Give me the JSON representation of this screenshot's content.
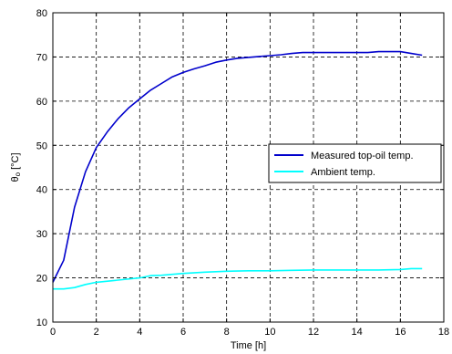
{
  "chart_data": {
    "type": "line",
    "title": "",
    "xlabel": "Time [h]",
    "ylabel": {
      "main": "θ",
      "subscript": "o",
      "unit": " [°C]"
    },
    "xlim": [
      0,
      18
    ],
    "ylim": [
      10,
      80
    ],
    "xticks": [
      0,
      2,
      4,
      6,
      8,
      10,
      12,
      14,
      16,
      18
    ],
    "yticks": [
      10,
      20,
      30,
      40,
      50,
      60,
      70,
      80
    ],
    "grid": true,
    "legend_position": "right",
    "series": [
      {
        "name": "Measured top-oil temp.",
        "color": "#0000cc",
        "x": [
          0,
          0.5,
          1,
          1.5,
          2,
          2.5,
          3,
          3.5,
          4,
          4.5,
          5,
          5.5,
          6,
          6.5,
          7,
          7.5,
          8,
          8.5,
          9,
          9.5,
          10,
          10.5,
          11,
          11.5,
          12,
          12.5,
          13,
          13.5,
          14,
          14.5,
          15,
          15.5,
          16,
          16.5,
          17
        ],
        "y": [
          19,
          24,
          36,
          44,
          49.5,
          53,
          56,
          58.5,
          60.5,
          62.5,
          64,
          65.5,
          66.5,
          67.3,
          68,
          68.8,
          69.3,
          69.7,
          69.9,
          70.1,
          70.3,
          70.5,
          70.8,
          71,
          71,
          71,
          71,
          71,
          71,
          71,
          71.2,
          71.2,
          71.2,
          70.8,
          70.4
        ]
      },
      {
        "name": "Ambient temp.",
        "color": "#00ffff",
        "x": [
          0,
          0.5,
          1,
          1.5,
          2,
          3,
          4,
          4.5,
          5,
          6,
          7,
          8,
          9,
          10,
          11,
          12,
          13,
          14,
          15,
          16,
          16.5,
          17
        ],
        "y": [
          17.5,
          17.5,
          17.8,
          18.5,
          19,
          19.5,
          20,
          20.5,
          20.6,
          21,
          21.3,
          21.5,
          21.6,
          21.6,
          21.7,
          21.8,
          21.8,
          21.8,
          21.8,
          21.9,
          22.1,
          22.1
        ]
      }
    ]
  }
}
